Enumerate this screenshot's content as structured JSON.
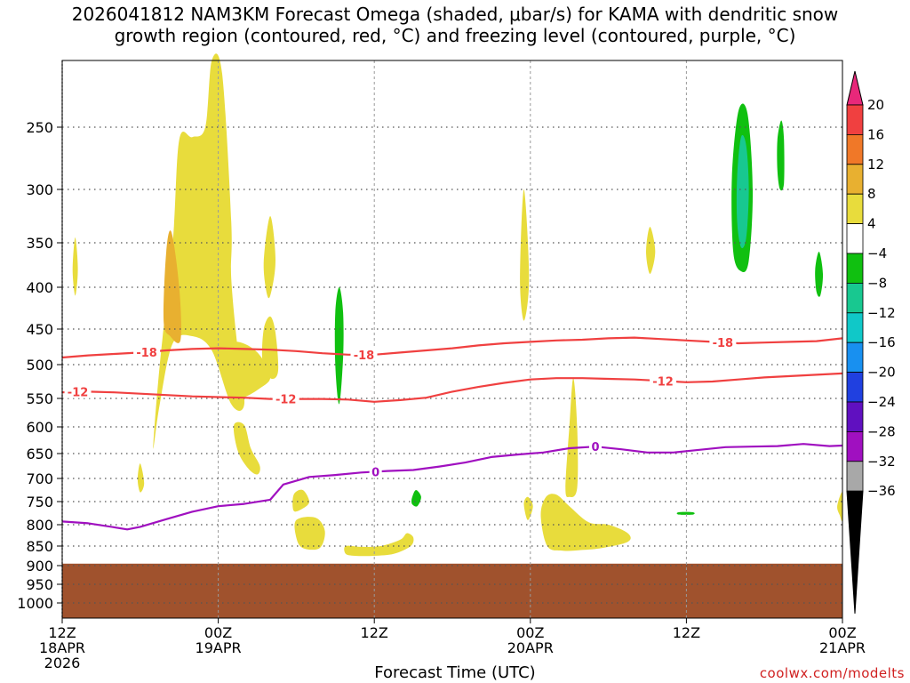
{
  "title_line1": "2026041812 NAM3KM Forecast Omega (shaded, μbar/s) for KAMA with dendritic snow",
  "title_line2": "growth region (contoured, red, °C) and freezing level (contoured, purple, °C)",
  "credit": "coolwx.com/modelts",
  "chart_data": {
    "type": "heatmap",
    "xlabel": "Forecast Time (UTC)",
    "x_range_hours": [
      0,
      60
    ],
    "x_ticks": [
      {
        "hour": 0,
        "lines": [
          "12Z",
          "18APR",
          "2026"
        ]
      },
      {
        "hour": 12,
        "lines": [
          "00Z",
          "19APR"
        ]
      },
      {
        "hour": 24,
        "lines": [
          "12Z"
        ]
      },
      {
        "hour": 36,
        "lines": [
          "00Z",
          "20APR"
        ]
      },
      {
        "hour": 48,
        "lines": [
          "12Z"
        ]
      },
      {
        "hour": 60,
        "lines": [
          "00Z",
          "21APR"
        ]
      }
    ],
    "y_axis": "pressure (hPa)",
    "y_range": [
      1050,
      200
    ],
    "y_ticks": [
      250,
      300,
      350,
      400,
      450,
      500,
      550,
      600,
      650,
      700,
      750,
      800,
      850,
      900,
      950,
      1000
    ],
    "ground_level_hpa": 895,
    "colorbar": {
      "labels": [
        "20",
        "16",
        "12",
        "8",
        "4",
        "−4",
        "−8",
        "−12",
        "−16",
        "−20",
        "−24",
        "−28",
        "−32",
        "−36"
      ],
      "colors": [
        "#e8287a",
        "#f04040",
        "#f07828",
        "#e8b030",
        "#e8dc3c",
        "#ffffff",
        "#10c010",
        "#18c890",
        "#10c8c8",
        "#1890f0",
        "#2040e0",
        "#6010c0",
        "#a010c0",
        "#a8a8a8",
        "#000000"
      ]
    },
    "dgz_contours": [
      {
        "label": "-18",
        "color": "#f04040",
        "points": [
          [
            0,
            490
          ],
          [
            2,
            487
          ],
          [
            4,
            485
          ],
          [
            6,
            483
          ],
          [
            8,
            480
          ],
          [
            10,
            478
          ],
          [
            12,
            477
          ],
          [
            14,
            478
          ],
          [
            16,
            479
          ],
          [
            18,
            481
          ],
          [
            20,
            484
          ],
          [
            22,
            486
          ],
          [
            24,
            486
          ],
          [
            26,
            483
          ],
          [
            28,
            480
          ],
          [
            30,
            477
          ],
          [
            32,
            473
          ],
          [
            34,
            470
          ],
          [
            36,
            468
          ],
          [
            38,
            466
          ],
          [
            40,
            465
          ],
          [
            42,
            463
          ],
          [
            44,
            462
          ],
          [
            46,
            464
          ],
          [
            48,
            466
          ],
          [
            50,
            468
          ],
          [
            52,
            470
          ],
          [
            54,
            469
          ],
          [
            56,
            468
          ],
          [
            58,
            467
          ],
          [
            60,
            463
          ]
        ]
      },
      {
        "label": "-12",
        "color": "#f04040",
        "points": [
          [
            0,
            541
          ],
          [
            2,
            540
          ],
          [
            4,
            541
          ],
          [
            6,
            543
          ],
          [
            8,
            545
          ],
          [
            10,
            547
          ],
          [
            12,
            548
          ],
          [
            14,
            549
          ],
          [
            16,
            551
          ],
          [
            18,
            551
          ],
          [
            20,
            551
          ],
          [
            22,
            552
          ],
          [
            24,
            556
          ],
          [
            26,
            553
          ],
          [
            28,
            549
          ],
          [
            30,
            540
          ],
          [
            32,
            533
          ],
          [
            34,
            527
          ],
          [
            36,
            522
          ],
          [
            38,
            520
          ],
          [
            40,
            520
          ],
          [
            42,
            521
          ],
          [
            44,
            522
          ],
          [
            46,
            524
          ],
          [
            48,
            526
          ],
          [
            50,
            525
          ],
          [
            52,
            522
          ],
          [
            54,
            519
          ],
          [
            56,
            517
          ],
          [
            58,
            515
          ],
          [
            60,
            513
          ]
        ]
      }
    ],
    "freezing_contour": {
      "label": "0",
      "color": "#a010c0",
      "points": [
        [
          0,
          793
        ],
        [
          2,
          797
        ],
        [
          4,
          806
        ],
        [
          5,
          811
        ],
        [
          6,
          805
        ],
        [
          8,
          788
        ],
        [
          10,
          772
        ],
        [
          12,
          760
        ],
        [
          14,
          755
        ],
        [
          16,
          746
        ],
        [
          17,
          713
        ],
        [
          19,
          697
        ],
        [
          21,
          693
        ],
        [
          23,
          688
        ],
        [
          25,
          685
        ],
        [
          27,
          683
        ],
        [
          29,
          676
        ],
        [
          31,
          668
        ],
        [
          33,
          657
        ],
        [
          35,
          652
        ],
        [
          37,
          648
        ],
        [
          39,
          640
        ],
        [
          41,
          637
        ],
        [
          43,
          642
        ],
        [
          45,
          648
        ],
        [
          47,
          648
        ],
        [
          49,
          643
        ],
        [
          51,
          638
        ],
        [
          53,
          637
        ],
        [
          55,
          636
        ],
        [
          57,
          632
        ],
        [
          59,
          636
        ],
        [
          60,
          635
        ]
      ]
    },
    "omega_regions": [
      {
        "fill": "#e8dc3c",
        "points": [
          [
            7.0,
            640
          ],
          [
            7.5,
            500
          ],
          [
            8.5,
            350
          ],
          [
            9.0,
            260
          ],
          [
            10.0,
            258
          ],
          [
            11.0,
            250
          ],
          [
            11.5,
            200
          ],
          [
            12.3,
            210
          ],
          [
            13.0,
            330
          ],
          [
            13.0,
            390
          ],
          [
            13.5,
            480
          ],
          [
            14.0,
            560
          ],
          [
            13.0,
            560
          ],
          [
            11.5,
            480
          ],
          [
            10.0,
            460
          ],
          [
            8.5,
            470
          ],
          [
            7.5,
            560
          ]
        ]
      },
      {
        "fill": "#e8dc3c",
        "points": [
          [
            11.8,
            470
          ],
          [
            13.5,
            468
          ],
          [
            14.7,
            478
          ],
          [
            15.5,
            495
          ],
          [
            16.0,
            520
          ],
          [
            15.2,
            535
          ],
          [
            14.0,
            548
          ],
          [
            13.2,
            545
          ],
          [
            12.5,
            510
          ]
        ]
      },
      {
        "fill": "#e8dc3c",
        "points": [
          [
            15.5,
            450
          ],
          [
            16.0,
            435
          ],
          [
            16.4,
            455
          ],
          [
            16.6,
            510
          ],
          [
            16.0,
            520
          ],
          [
            15.4,
            495
          ]
        ]
      },
      {
        "fill": "#e8b030",
        "points": [
          [
            7.8,
            440
          ],
          [
            8.0,
            360
          ],
          [
            8.4,
            340
          ],
          [
            9.0,
            400
          ],
          [
            9.1,
            465
          ],
          [
            8.3,
            460
          ]
        ]
      },
      {
        "fill": "#e8dc3c",
        "points": [
          [
            13.2,
            597
          ],
          [
            14.0,
            597
          ],
          [
            14.5,
            640
          ],
          [
            15.2,
            675
          ],
          [
            15.0,
            692
          ],
          [
            14.3,
            680
          ],
          [
            13.5,
            645
          ]
        ]
      },
      {
        "fill": "#e8dc3c",
        "points": [
          [
            15.5,
            370
          ],
          [
            16.0,
            325
          ],
          [
            16.4,
            370
          ],
          [
            16.0,
            410
          ],
          [
            15.7,
            405
          ]
        ]
      },
      {
        "fill": "#e8dc3c",
        "points": [
          [
            0.8,
            380
          ],
          [
            1.0,
            345
          ],
          [
            1.2,
            380
          ],
          [
            1.0,
            410
          ]
        ]
      },
      {
        "fill": "#e8dc3c",
        "points": [
          [
            5.8,
            702
          ],
          [
            6.0,
            670
          ],
          [
            6.3,
            710
          ],
          [
            6.0,
            730
          ]
        ]
      },
      {
        "fill": "#e8dc3c",
        "points": [
          [
            17.8,
            735
          ],
          [
            18.5,
            725
          ],
          [
            19.0,
            750
          ],
          [
            18.5,
            765
          ],
          [
            17.8,
            770
          ]
        ]
      },
      {
        "fill": "#e8dc3c",
        "points": [
          [
            18.0,
            790
          ],
          [
            19.5,
            785
          ],
          [
            20.2,
            815
          ],
          [
            19.8,
            855
          ],
          [
            18.5,
            855
          ],
          [
            18.0,
            830
          ]
        ]
      },
      {
        "fill": "#e8dc3c",
        "points": [
          [
            21.8,
            850
          ],
          [
            23.0,
            852
          ],
          [
            24.5,
            850
          ],
          [
            26.0,
            835
          ],
          [
            26.5,
            820
          ],
          [
            27.0,
            830
          ],
          [
            26.8,
            850
          ],
          [
            25.5,
            870
          ],
          [
            24.0,
            875
          ],
          [
            22.5,
            875
          ],
          [
            21.8,
            870
          ]
        ]
      },
      {
        "fill": "#e8dc3c",
        "points": [
          [
            35.5,
            755
          ],
          [
            35.8,
            740
          ],
          [
            36.2,
            760
          ],
          [
            35.8,
            790
          ]
        ]
      },
      {
        "fill": "#e8dc3c",
        "points": [
          [
            35.2,
            390
          ],
          [
            35.5,
            300
          ],
          [
            35.9,
            390
          ],
          [
            35.5,
            440
          ]
        ]
      },
      {
        "fill": "#e8dc3c",
        "points": [
          [
            36.8,
            780
          ],
          [
            37.2,
            740
          ],
          [
            38.0,
            735
          ],
          [
            39.0,
            760
          ],
          [
            40.5,
            795
          ],
          [
            42.0,
            800
          ],
          [
            43.5,
            820
          ],
          [
            43.5,
            840
          ],
          [
            41.5,
            855
          ],
          [
            40.0,
            860
          ],
          [
            38.5,
            862
          ],
          [
            37.3,
            850
          ]
        ]
      },
      {
        "fill": "#e8dc3c",
        "points": [
          [
            38.7,
            720
          ],
          [
            39.0,
            600
          ],
          [
            39.3,
            520
          ],
          [
            39.6,
            600
          ],
          [
            39.6,
            720
          ],
          [
            39.0,
            740
          ]
        ]
      },
      {
        "fill": "#e8dc3c",
        "points": [
          [
            44.9,
            360
          ],
          [
            45.2,
            335
          ],
          [
            45.6,
            360
          ],
          [
            45.2,
            385
          ]
        ]
      },
      {
        "fill": "#e8dc3c",
        "points": [
          [
            59.6,
            760
          ],
          [
            60.0,
            730
          ],
          [
            60.0,
            790
          ],
          [
            59.8,
            780
          ]
        ]
      },
      {
        "fill": "#10c010",
        "points": [
          [
            21.0,
            430
          ],
          [
            21.3,
            400
          ],
          [
            21.6,
            430
          ],
          [
            21.6,
            490
          ],
          [
            21.3,
            560
          ],
          [
            21.0,
            500
          ]
        ]
      },
      {
        "fill": "#10c010",
        "points": [
          [
            26.9,
            742
          ],
          [
            27.2,
            725
          ],
          [
            27.6,
            740
          ],
          [
            27.3,
            760
          ],
          [
            26.9,
            755
          ]
        ]
      },
      {
        "fill": "#10c010",
        "points": [
          [
            47.4,
            773
          ],
          [
            48.5,
            773
          ],
          [
            48.5,
            778
          ],
          [
            47.4,
            778
          ]
        ]
      },
      {
        "fill": "#10c010",
        "points": [
          [
            51.5,
            290
          ],
          [
            52.0,
            238
          ],
          [
            52.7,
            240
          ],
          [
            53.1,
            300
          ],
          [
            52.8,
            370
          ],
          [
            52.2,
            382
          ],
          [
            51.6,
            360
          ]
        ]
      },
      {
        "fill": "#18c890",
        "points": [
          [
            51.9,
            290
          ],
          [
            52.2,
            258
          ],
          [
            52.6,
            265
          ],
          [
            52.8,
            300
          ],
          [
            52.6,
            345
          ],
          [
            52.2,
            355
          ],
          [
            51.9,
            330
          ]
        ]
      },
      {
        "fill": "#10c010",
        "points": [
          [
            55.0,
            260
          ],
          [
            55.3,
            245
          ],
          [
            55.5,
            260
          ],
          [
            55.5,
            295
          ],
          [
            55.2,
            300
          ],
          [
            55.0,
            285
          ]
        ]
      },
      {
        "fill": "#10c010",
        "points": [
          [
            57.9,
            380
          ],
          [
            58.2,
            360
          ],
          [
            58.5,
            385
          ],
          [
            58.3,
            410
          ],
          [
            58.0,
            405
          ]
        ]
      }
    ]
  }
}
